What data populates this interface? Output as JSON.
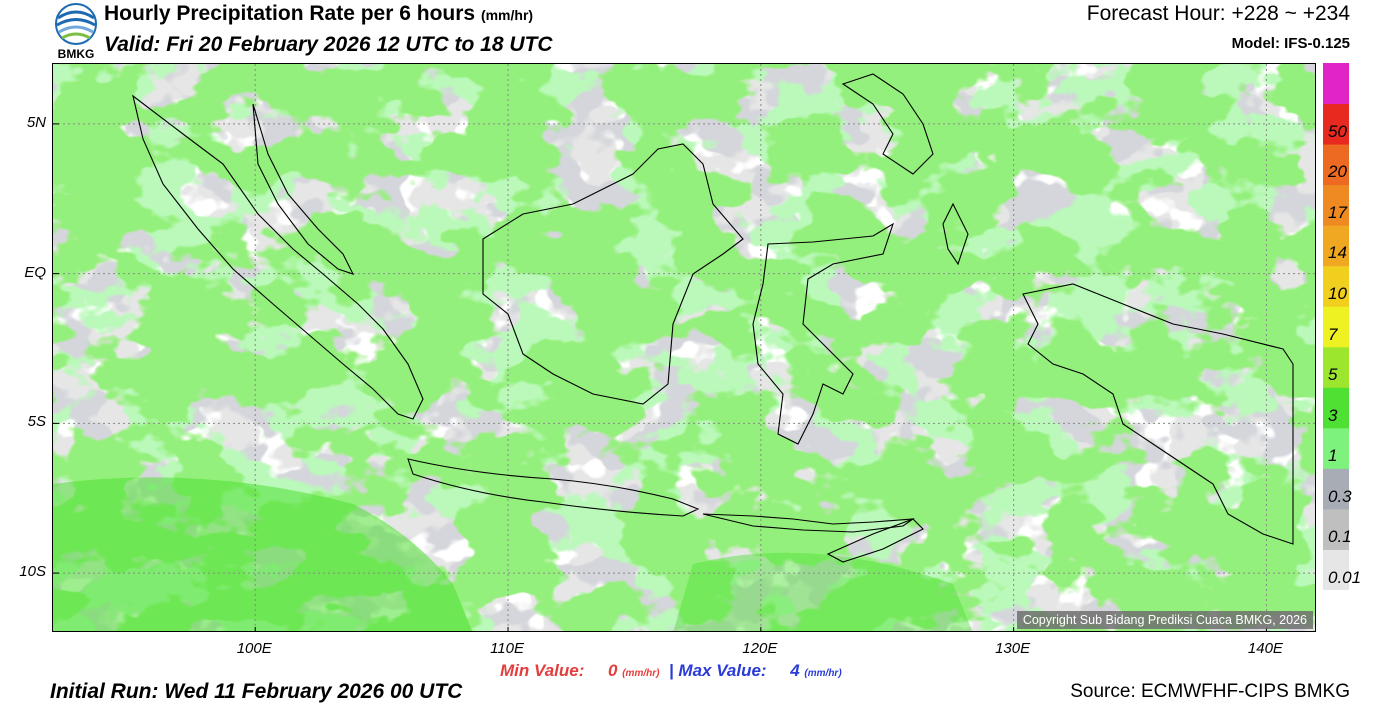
{
  "header": {
    "logo_text": "BMKG",
    "title": "Hourly Precipitation Rate per 6 hours",
    "title_unit": "(mm/hr)",
    "valid": "Valid: Fri 20 February 2026 12 UTC to 18 UTC",
    "forecast_hour": "Forecast Hour: +228 ~ +234",
    "model": "Model: IFS-0.125"
  },
  "map": {
    "copyright": "Copyright Sub Bidang Prediksi Cuaca BMKG, 2026",
    "lat_labels": [
      "5N",
      "EQ",
      "5S",
      "10S"
    ],
    "lat_values": [
      5,
      0,
      -5,
      -10
    ],
    "lon_labels": [
      "100E",
      "110E",
      "120E",
      "130E",
      "140E"
    ],
    "lon_values": [
      100,
      110,
      120,
      130,
      140
    ],
    "lat_range": [
      -12,
      7
    ],
    "lon_range": [
      92,
      142
    ],
    "colors": {
      "no_rain": "#e6e6e6",
      "very_light": "#ffffff",
      "light": "#a8acb4",
      "moderate": "#7df27d",
      "heavy": "#4ee033",
      "coastline": "#000000"
    }
  },
  "legend": {
    "levels": [
      "0.01",
      "0.1",
      "0.3",
      "1",
      "3",
      "5",
      "7",
      "10",
      "14",
      "17",
      "20",
      "50"
    ],
    "colors": [
      "#e6e6e6",
      "#bfbfbf",
      "#a8acb4",
      "#7df27d",
      "#4ee033",
      "#9de62e",
      "#eef222",
      "#f0cf1f",
      "#f0a823",
      "#ef8a23",
      "#ed6a23",
      "#e8291f",
      "#e024c6"
    ]
  },
  "footer": {
    "min_label": "Min Value:",
    "min_value": "0",
    "unit": "(mm/hr)",
    "separator": "|",
    "max_label": "Max Value:",
    "max_value": "4",
    "initial_run": "Initial Run: Wed 11 February 2026 00 UTC",
    "source": "Source: ECMWFHF-CIPS BMKG"
  }
}
